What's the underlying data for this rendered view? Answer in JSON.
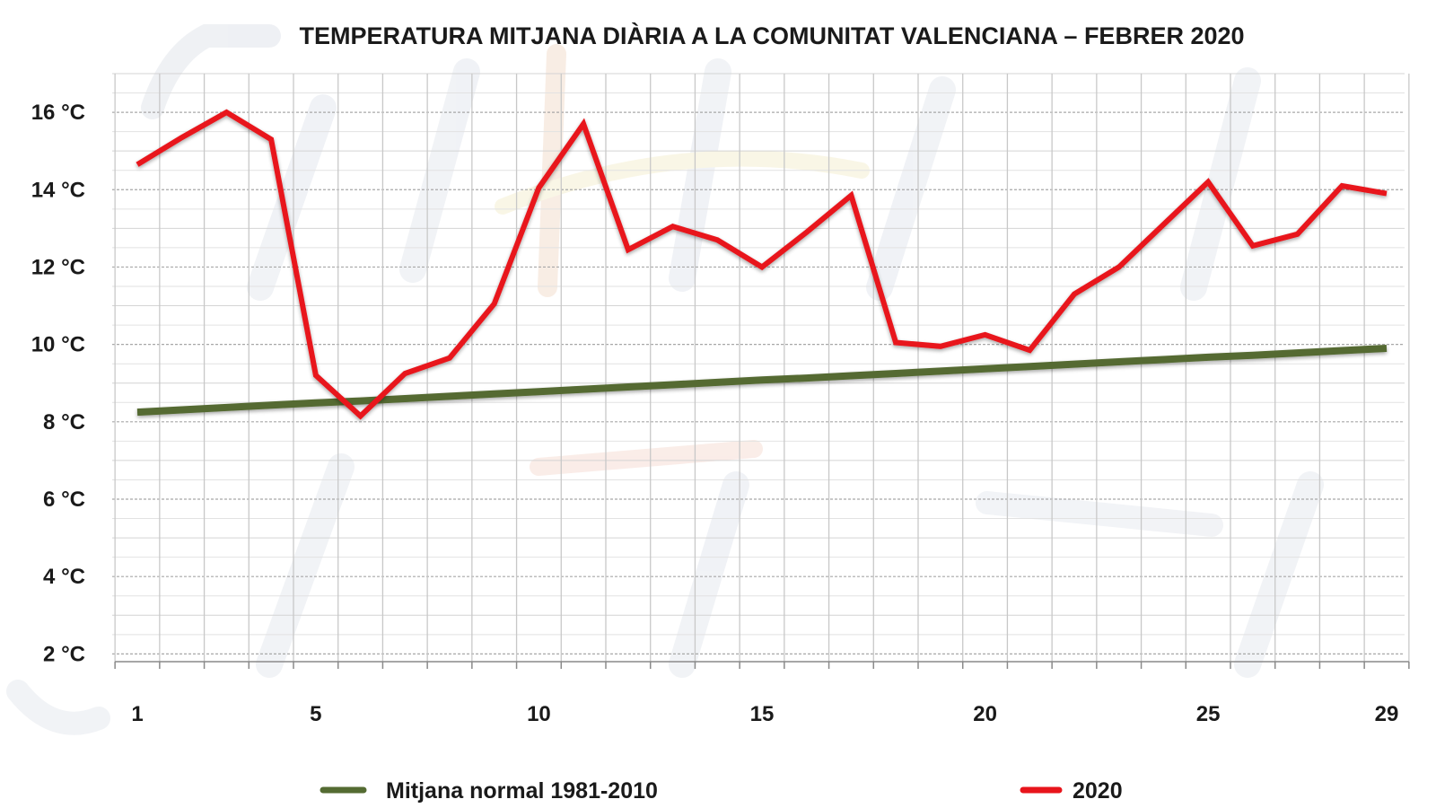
{
  "chart_data": {
    "type": "line",
    "title": "TEMPERATURA MITJANA DIÀRIA A LA COMUNITAT VALENCIANA – FEBRER 2020",
    "xlabel": "",
    "ylabel": "",
    "x": [
      1,
      2,
      3,
      4,
      5,
      6,
      7,
      8,
      9,
      10,
      11,
      12,
      13,
      14,
      15,
      16,
      17,
      18,
      19,
      20,
      21,
      22,
      23,
      24,
      25,
      26,
      27,
      28,
      29
    ],
    "x_tick_values": [
      1,
      5,
      10,
      15,
      20,
      25,
      29
    ],
    "x_tick_labels": [
      "1",
      "5",
      "10",
      "15",
      "20",
      "25",
      "29"
    ],
    "y_tick_values": [
      2,
      4,
      6,
      8,
      10,
      12,
      14,
      16
    ],
    "y_tick_labels": [
      "2 °C",
      "4 °C",
      "6 °C",
      "8 °C",
      "10 °C",
      "12 °C",
      "14 °C",
      "16 °C"
    ],
    "ylim": [
      1.8,
      17.0
    ],
    "series": [
      {
        "name": "Mitjana normal 1981-2010",
        "color": "#546b32",
        "values": [
          8.25,
          8.31,
          8.37,
          8.43,
          8.49,
          8.54,
          8.6,
          8.66,
          8.72,
          8.78,
          8.84,
          8.9,
          8.96,
          9.02,
          9.08,
          9.13,
          9.19,
          9.25,
          9.31,
          9.37,
          9.43,
          9.49,
          9.55,
          9.61,
          9.67,
          9.72,
          9.78,
          9.84,
          9.9
        ]
      },
      {
        "name": "2020",
        "color": "#e8141b",
        "values": [
          14.65,
          15.35,
          16.0,
          15.3,
          9.2,
          8.15,
          9.25,
          9.65,
          11.05,
          14.05,
          15.7,
          12.45,
          13.05,
          12.7,
          12.0,
          12.9,
          13.85,
          10.05,
          9.95,
          10.25,
          9.85,
          11.3,
          12.0,
          13.1,
          14.2,
          12.55,
          12.85,
          14.1,
          13.9
        ]
      }
    ],
    "grid": true,
    "legend_position": "bottom"
  }
}
